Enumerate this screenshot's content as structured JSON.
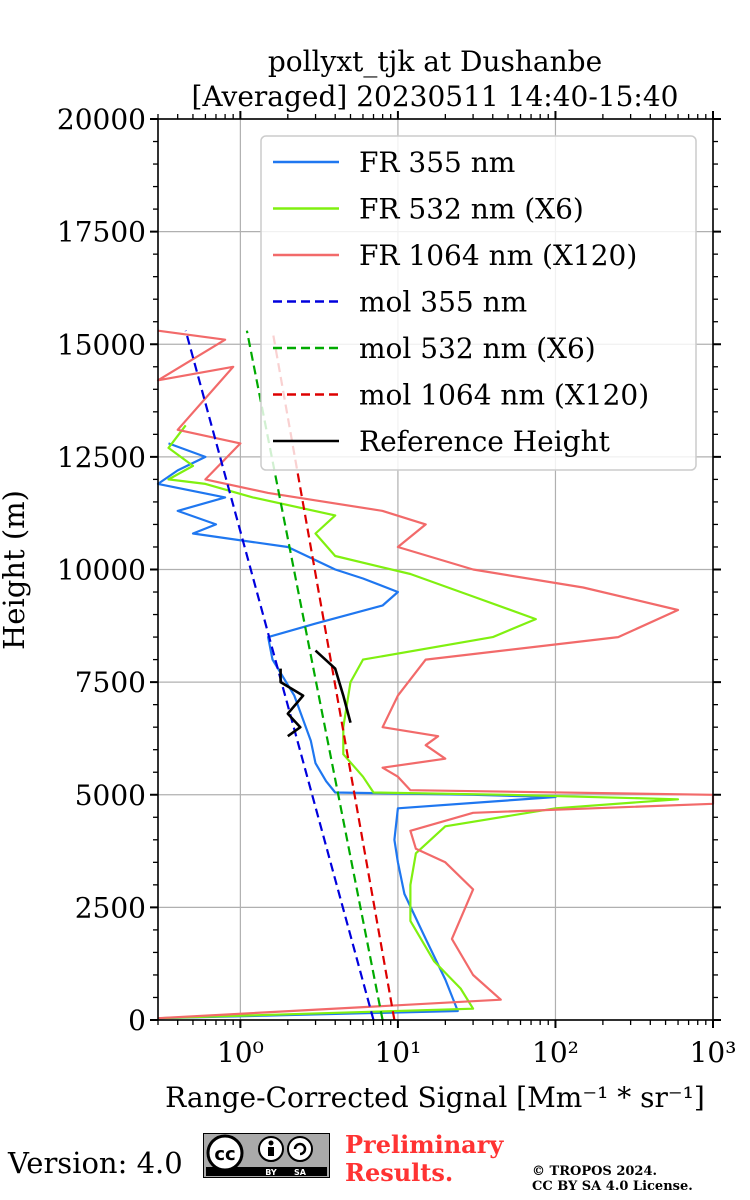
{
  "chart_data": {
    "type": "line",
    "title": [
      "pollyxt_tjk at Dushanbe",
      "[Averaged] 20230511 14:40-15:40"
    ],
    "xlabel": "Range-Corrected Signal [Mm⁻¹ * sr⁻¹]",
    "ylabel": "Height (m)",
    "xscale": "log",
    "xlim": [
      0.3,
      1000
    ],
    "ylim": [
      0,
      20000
    ],
    "yticks": [
      0,
      2500,
      5000,
      7500,
      10000,
      12500,
      15000,
      17500,
      20000
    ],
    "xtick_labels": [
      "10⁰",
      "10¹",
      "10²",
      "10³"
    ],
    "grid": true,
    "legend_position": "top-right",
    "series": [
      {
        "name": "FR 355 nm",
        "color": "#1f77f0",
        "style": "solid",
        "points": [
          [
            0.3,
            40
          ],
          [
            24,
            200
          ],
          [
            20,
            900
          ],
          [
            15,
            1800
          ],
          [
            11,
            2800
          ],
          [
            10,
            3500
          ],
          [
            9.5,
            4000
          ],
          [
            10,
            4700
          ],
          [
            40,
            4850
          ],
          [
            100,
            4950
          ],
          [
            30,
            5000
          ],
          [
            4,
            5050
          ],
          [
            3.5,
            5300
          ],
          [
            3,
            5700
          ],
          [
            2.8,
            6200
          ],
          [
            2.2,
            7200
          ],
          [
            1.6,
            8000
          ],
          [
            1.5,
            8500
          ],
          [
            3,
            8800
          ],
          [
            8,
            9200
          ],
          [
            10,
            9500
          ],
          [
            6,
            9800
          ],
          [
            4,
            10000
          ],
          [
            2,
            10500
          ],
          [
            0.5,
            10800
          ],
          [
            0.7,
            11000
          ],
          [
            0.4,
            11300
          ],
          [
            0.8,
            11600
          ],
          [
            0.3,
            11900
          ],
          [
            0.4,
            12200
          ],
          [
            0.6,
            12500
          ],
          [
            0.35,
            12800
          ]
        ]
      },
      {
        "name": "FR 532 nm (X6)",
        "color": "#80f010",
        "style": "solid",
        "points": [
          [
            0.3,
            40
          ],
          [
            30,
            250
          ],
          [
            25,
            700
          ],
          [
            17,
            1300
          ],
          [
            12,
            2200
          ],
          [
            12,
            3000
          ],
          [
            13,
            3700
          ],
          [
            20,
            4300
          ],
          [
            100,
            4700
          ],
          [
            600,
            4900
          ],
          [
            50,
            5000
          ],
          [
            7,
            5050
          ],
          [
            6,
            5400
          ],
          [
            4.5,
            5900
          ],
          [
            4.5,
            6500
          ],
          [
            5,
            7500
          ],
          [
            6,
            8000
          ],
          [
            40,
            8500
          ],
          [
            75,
            8900
          ],
          [
            30,
            9400
          ],
          [
            12,
            9900
          ],
          [
            4,
            10300
          ],
          [
            3,
            10800
          ],
          [
            4,
            11200
          ],
          [
            1.2,
            11600
          ],
          [
            0.6,
            11900
          ],
          [
            0.35,
            12000
          ],
          [
            0.5,
            12300
          ],
          [
            0.35,
            12700
          ],
          [
            0.45,
            13200
          ]
        ]
      },
      {
        "name": "FR 1064 nm (X120)",
        "color": "#f26a6a",
        "style": "solid",
        "points": [
          [
            0.3,
            40
          ],
          [
            45,
            450
          ],
          [
            30,
            1000
          ],
          [
            22,
            1800
          ],
          [
            30,
            2900
          ],
          [
            20,
            3500
          ],
          [
            13,
            3800
          ],
          [
            12,
            4200
          ],
          [
            30,
            4600
          ],
          [
            1000,
            4800
          ],
          [
            1000,
            5000
          ],
          [
            12,
            5100
          ],
          [
            10,
            5400
          ],
          [
            8,
            5600
          ],
          [
            20,
            5800
          ],
          [
            15,
            6100
          ],
          [
            18,
            6300
          ],
          [
            8,
            6500
          ],
          [
            10,
            7200
          ],
          [
            15,
            8000
          ],
          [
            250,
            8500
          ],
          [
            600,
            9100
          ],
          [
            150,
            9600
          ],
          [
            30,
            10000
          ],
          [
            10,
            10500
          ],
          [
            15,
            11000
          ],
          [
            8,
            11300
          ],
          [
            1.5,
            11700
          ],
          [
            0.6,
            12000
          ],
          [
            1.0,
            12800
          ],
          [
            0.4,
            13100
          ],
          [
            0.9,
            14500
          ],
          [
            0.3,
            14200
          ],
          [
            0.8,
            15100
          ],
          [
            0.3,
            15300
          ]
        ]
      },
      {
        "name": "mol 355 nm",
        "color": "#0000dd",
        "style": "dashed",
        "points": [
          [
            7,
            0
          ],
          [
            0.45,
            15300
          ]
        ]
      },
      {
        "name": "mol 532 nm (X6)",
        "color": "#00aa00",
        "style": "dashed",
        "points": [
          [
            8,
            0
          ],
          [
            1.1,
            15300
          ]
        ]
      },
      {
        "name": "mol 1064 nm (X120)",
        "color": "#dd0000",
        "style": "dashed",
        "points": [
          [
            9.5,
            0
          ],
          [
            1.6,
            15300
          ]
        ]
      },
      {
        "name": "Reference Height",
        "color": "#000000",
        "style": "solid",
        "segments": [
          [
            [
              2,
              6300
            ],
            [
              2.4,
              6500
            ],
            [
              2,
              6800
            ],
            [
              2.5,
              7200
            ],
            [
              1.8,
              7500
            ],
            [
              1.8,
              7800
            ]
          ],
          [
            [
              3,
              8200
            ],
            [
              4,
              7800
            ],
            [
              4.5,
              7200
            ],
            [
              5,
              6600
            ]
          ]
        ]
      }
    ]
  },
  "footer": {
    "version": "Version: 4.0",
    "cc_label": "cc",
    "cc_by": "BY",
    "cc_sa": "SA",
    "preliminary": [
      "Preliminary",
      "Results."
    ],
    "copyright": [
      "© TROPOS 2024.",
      "CC BY SA 4.0 License."
    ]
  }
}
